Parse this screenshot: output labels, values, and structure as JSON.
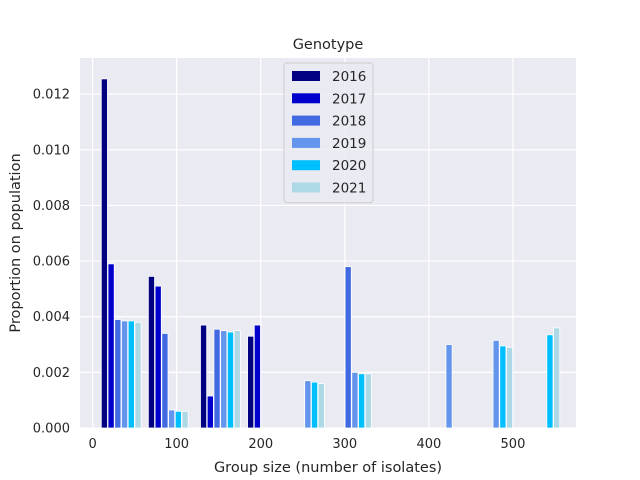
{
  "chart_data": {
    "type": "bar",
    "title": "Genotype",
    "xlabel": "Group size (number of isolates)",
    "ylabel": "Proportion on population",
    "xlim": [
      -15,
      575
    ],
    "ylim": [
      0,
      0.0133
    ],
    "grid": true,
    "legend_position": "top-center",
    "x_ticks": [
      0,
      100,
      200,
      300,
      400,
      500
    ],
    "x_tick_labels": [
      "0",
      "100",
      "200",
      "300",
      "400",
      "500"
    ],
    "y_ticks": [
      0,
      0.002,
      0.004,
      0.006,
      0.008,
      0.01,
      0.012
    ],
    "y_tick_labels": [
      "0.000",
      "0.002",
      "0.004",
      "0.006",
      "0.008",
      "0.010",
      "0.012"
    ],
    "series": [
      {
        "name": "2016",
        "color": "#000080",
        "points": [
          {
            "x": 14,
            "y": 0.01255
          },
          {
            "x": 70,
            "y": 0.00545
          },
          {
            "x": 132,
            "y": 0.0037
          },
          {
            "x": 188,
            "y": 0.0033
          }
        ]
      },
      {
        "name": "2017",
        "color": "#0000cd",
        "points": [
          {
            "x": 22,
            "y": 0.0059
          },
          {
            "x": 78,
            "y": 0.0051
          },
          {
            "x": 140,
            "y": 0.00115
          },
          {
            "x": 196,
            "y": 0.0037
          }
        ]
      },
      {
        "name": "2018",
        "color": "#4169e1",
        "points": [
          {
            "x": 30,
            "y": 0.0039
          },
          {
            "x": 86,
            "y": 0.0034
          },
          {
            "x": 148,
            "y": 0.00355
          },
          {
            "x": 304,
            "y": 0.0058
          }
        ]
      },
      {
        "name": "2019",
        "color": "#6495ed",
        "points": [
          {
            "x": 38,
            "y": 0.00385
          },
          {
            "x": 94,
            "y": 0.00065
          },
          {
            "x": 156,
            "y": 0.0035
          },
          {
            "x": 256,
            "y": 0.0017
          },
          {
            "x": 312,
            "y": 0.002
          },
          {
            "x": 424,
            "y": 0.003
          },
          {
            "x": 480,
            "y": 0.00315
          }
        ]
      },
      {
        "name": "2020",
        "color": "#00bfff",
        "points": [
          {
            "x": 46,
            "y": 0.00385
          },
          {
            "x": 102,
            "y": 0.0006
          },
          {
            "x": 164,
            "y": 0.00345
          },
          {
            "x": 264,
            "y": 0.00165
          },
          {
            "x": 320,
            "y": 0.00195
          },
          {
            "x": 488,
            "y": 0.00295
          },
          {
            "x": 544,
            "y": 0.00335
          }
        ]
      },
      {
        "name": "2021",
        "color": "#add8e6",
        "points": [
          {
            "x": 54,
            "y": 0.0038
          },
          {
            "x": 110,
            "y": 0.0006
          },
          {
            "x": 172,
            "y": 0.0035
          },
          {
            "x": 272,
            "y": 0.0016
          },
          {
            "x": 328,
            "y": 0.00195
          },
          {
            "x": 496,
            "y": 0.0029
          },
          {
            "x": 552,
            "y": 0.0036
          }
        ]
      }
    ]
  }
}
